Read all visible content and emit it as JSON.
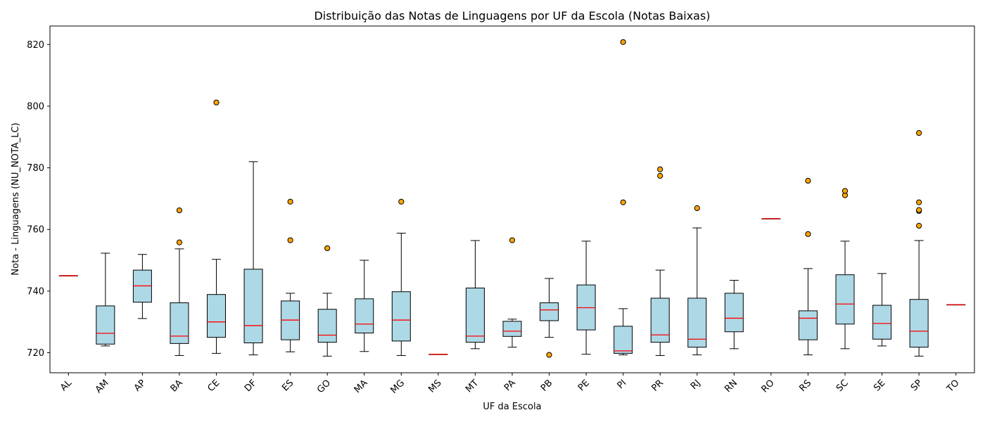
{
  "chart_data": {
    "type": "box",
    "title": "Distribuição das Notas de Linguagens por UF da Escola (Notas Baixas)",
    "xlabel": "UF da Escola",
    "ylabel": "Nota - Linguagens (NU_NOTA_LC)",
    "ylim": [
      713.5,
      826
    ],
    "yticks": [
      720,
      740,
      760,
      780,
      800,
      820
    ],
    "grid": false,
    "colors": {
      "box_fill": "#add8e6",
      "box_edge": "#000000",
      "median": "#ff0000",
      "outlier_fill": "#ffa500",
      "outlier_edge": "#000000"
    },
    "categories": [
      "AL",
      "AM",
      "AP",
      "BA",
      "CE",
      "DF",
      "ES",
      "GO",
      "MA",
      "MG",
      "MS",
      "MT",
      "PA",
      "PB",
      "PE",
      "PI",
      "PR",
      "RJ",
      "RN",
      "RO",
      "RS",
      "SC",
      "SE",
      "SP",
      "TO"
    ],
    "boxes": [
      {
        "label": "AL",
        "min": 745.0,
        "q1": 745.0,
        "median": 745.0,
        "q3": 745.0,
        "max": 745.0,
        "outliers": []
      },
      {
        "label": "AM",
        "min": 722.2,
        "q1": 722.8,
        "median": 726.3,
        "q3": 735.2,
        "max": 752.3,
        "outliers": []
      },
      {
        "label": "AP",
        "min": 731.1,
        "q1": 736.4,
        "median": 741.7,
        "q3": 746.8,
        "max": 751.9,
        "outliers": []
      },
      {
        "label": "BA",
        "min": 719.1,
        "q1": 723.0,
        "median": 725.4,
        "q3": 736.2,
        "max": 753.7,
        "outliers": [
          755.8,
          766.2
        ]
      },
      {
        "label": "CE",
        "min": 719.8,
        "q1": 725.0,
        "median": 730.0,
        "q3": 738.9,
        "max": 750.3,
        "outliers": [
          801.2
        ]
      },
      {
        "label": "DF",
        "min": 719.3,
        "q1": 723.2,
        "median": 728.8,
        "q3": 747.1,
        "max": 782.0,
        "outliers": []
      },
      {
        "label": "ES",
        "min": 720.3,
        "q1": 724.2,
        "median": 730.6,
        "q3": 736.8,
        "max": 739.3,
        "outliers": [
          756.5,
          769.0
        ]
      },
      {
        "label": "GO",
        "min": 718.9,
        "q1": 723.4,
        "median": 725.7,
        "q3": 734.1,
        "max": 739.3,
        "outliers": [
          753.9
        ]
      },
      {
        "label": "MA",
        "min": 720.4,
        "q1": 726.4,
        "median": 729.3,
        "q3": 737.5,
        "max": 750.0,
        "outliers": []
      },
      {
        "label": "MG",
        "min": 719.1,
        "q1": 723.8,
        "median": 730.6,
        "q3": 739.8,
        "max": 758.8,
        "outliers": [
          769.0
        ]
      },
      {
        "label": "MS",
        "min": 719.5,
        "q1": 719.5,
        "median": 719.5,
        "q3": 719.5,
        "max": 719.5,
        "outliers": []
      },
      {
        "label": "MT",
        "min": 721.3,
        "q1": 723.4,
        "median": 725.4,
        "q3": 741.0,
        "max": 756.4,
        "outliers": []
      },
      {
        "label": "PA",
        "min": 721.8,
        "q1": 725.3,
        "median": 727.0,
        "q3": 730.2,
        "max": 730.9,
        "outliers": [
          756.5
        ]
      },
      {
        "label": "PB",
        "min": 725.0,
        "q1": 730.4,
        "median": 733.9,
        "q3": 736.2,
        "max": 744.1,
        "outliers": [
          719.3
        ]
      },
      {
        "label": "PE",
        "min": 719.5,
        "q1": 727.4,
        "median": 734.6,
        "q3": 742.0,
        "max": 756.2,
        "outliers": []
      },
      {
        "label": "PI",
        "min": 719.3,
        "q1": 719.8,
        "median": 720.6,
        "q3": 728.6,
        "max": 734.3,
        "outliers": [
          768.8,
          820.8
        ]
      },
      {
        "label": "PR",
        "min": 719.1,
        "q1": 723.4,
        "median": 725.8,
        "q3": 737.7,
        "max": 746.8,
        "outliers": [
          777.4,
          779.5
        ]
      },
      {
        "label": "RJ",
        "min": 719.3,
        "q1": 721.8,
        "median": 724.4,
        "q3": 737.7,
        "max": 760.5,
        "outliers": [
          766.9
        ]
      },
      {
        "label": "RN",
        "min": 721.3,
        "q1": 726.8,
        "median": 731.2,
        "q3": 739.3,
        "max": 743.5,
        "outliers": []
      },
      {
        "label": "RO",
        "min": 763.5,
        "q1": 763.5,
        "median": 763.5,
        "q3": 763.5,
        "max": 763.5,
        "outliers": []
      },
      {
        "label": "RS",
        "min": 719.3,
        "q1": 724.2,
        "median": 731.2,
        "q3": 733.6,
        "max": 747.3,
        "outliers": [
          758.5,
          775.8
        ]
      },
      {
        "label": "SC",
        "min": 721.3,
        "q1": 729.3,
        "median": 735.8,
        "q3": 745.3,
        "max": 756.2,
        "outliers": [
          771.1,
          772.5
        ]
      },
      {
        "label": "SE",
        "min": 722.2,
        "q1": 724.4,
        "median": 729.5,
        "q3": 735.4,
        "max": 745.7,
        "outliers": []
      },
      {
        "label": "SP",
        "min": 718.9,
        "q1": 721.8,
        "median": 727.0,
        "q3": 737.3,
        "max": 756.4,
        "outliers": [
          761.2,
          766.0,
          766.3,
          768.8,
          791.3
        ]
      },
      {
        "label": "TO",
        "min": 735.6,
        "q1": 735.6,
        "median": 735.6,
        "q3": 735.6,
        "max": 735.6,
        "outliers": []
      }
    ]
  }
}
